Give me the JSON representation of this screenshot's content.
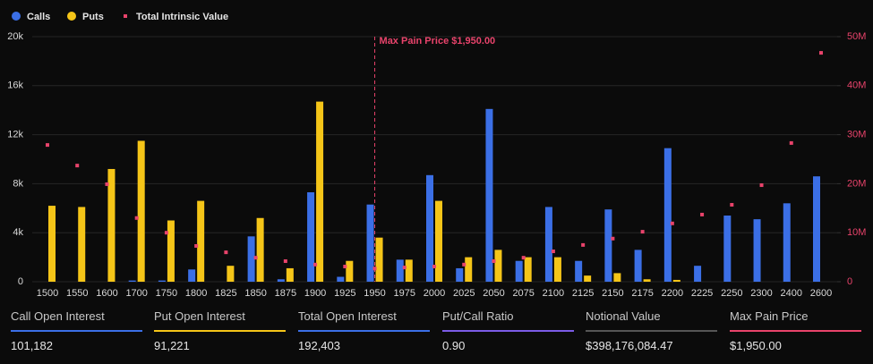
{
  "chart_data": {
    "type": "bar",
    "legend": "top-left",
    "grid": true,
    "categories": [
      1500,
      1550,
      1600,
      1700,
      1750,
      1800,
      1825,
      1850,
      1875,
      1900,
      1925,
      1950,
      1975,
      2000,
      2025,
      2050,
      2075,
      2100,
      2125,
      2150,
      2175,
      2200,
      2225,
      2250,
      2300,
      2400,
      2600
    ],
    "series": [
      {
        "name": "Calls",
        "type": "bar",
        "color": "#3b6fe6",
        "values": [
          0,
          0,
          0,
          100,
          100,
          1000,
          0,
          3700,
          200,
          7300,
          400,
          6300,
          1800,
          8700,
          1100,
          14100,
          1700,
          6100,
          1700,
          5900,
          2600,
          10900,
          1300,
          5400,
          5100,
          6400,
          8600
        ]
      },
      {
        "name": "Puts",
        "type": "bar",
        "color": "#f5c518",
        "values": [
          6200,
          6100,
          9200,
          11500,
          5000,
          6600,
          1300,
          5200,
          1100,
          14700,
          1700,
          3600,
          1800,
          6600,
          2000,
          2600,
          2000,
          2000,
          500,
          700,
          200,
          150,
          0,
          0,
          0,
          0,
          0
        ]
      },
      {
        "name": "Total Intrinsic Value",
        "type": "scatter",
        "axis": "y2",
        "color": "#e8436b",
        "values": [
          27900000,
          23700000,
          19900000,
          13000000,
          10000000,
          7300000,
          6000000,
          4900000,
          4200000,
          3500000,
          3100000,
          2700000,
          2900000,
          3100000,
          3500000,
          4200000,
          4900000,
          6200000,
          7500000,
          8800000,
          10200000,
          11900000,
          13700000,
          15700000,
          19700000,
          28300000,
          46700000
        ]
      }
    ],
    "ylim": [
      0,
      20000
    ],
    "yticks": [
      0,
      {
        "value": 4000,
        "label": "4k"
      },
      {
        "value": 8000,
        "label": "8k"
      },
      {
        "value": 12000,
        "label": "12k"
      },
      {
        "value": 16000,
        "label": "16k"
      },
      {
        "value": 20000,
        "label": "20k"
      }
    ],
    "y2lim": [
      0,
      50000000
    ],
    "y2ticks": [
      0,
      {
        "value": 10000000,
        "label": "10M"
      },
      {
        "value": 20000000,
        "label": "20M"
      },
      {
        "value": 30000000,
        "label": "30M"
      },
      {
        "value": 40000000,
        "label": "40M"
      },
      {
        "value": 50000000,
        "label": "50M"
      }
    ],
    "annotation": {
      "text": "Max Pain Price $1,950.00",
      "x": 1950,
      "color": "#e8436b"
    }
  },
  "stats": [
    {
      "label": "Call Open Interest",
      "value": "101,182",
      "color": "#3b6fe6"
    },
    {
      "label": "Put Open Interest",
      "value": "91,221",
      "color": "#f5c518"
    },
    {
      "label": "Total Open Interest",
      "value": "192,403",
      "color": "#3b6fe6"
    },
    {
      "label": "Put/Call Ratio",
      "value": "0.90",
      "color": "#7b5be6"
    },
    {
      "label": "Notional Value",
      "value": "$398,176,084.47",
      "color": "#555555"
    },
    {
      "label": "Max Pain Price",
      "value": "$1,950.00",
      "color": "#e8436b"
    }
  ]
}
